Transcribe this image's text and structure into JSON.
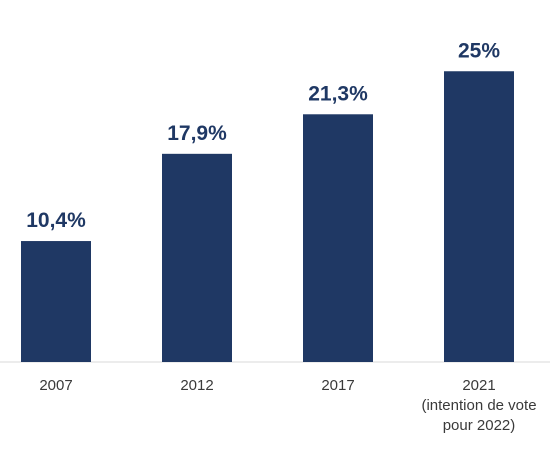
{
  "chart_data": {
    "type": "bar",
    "categories": [
      [
        "2007"
      ],
      [
        "2012"
      ],
      [
        "2017"
      ],
      [
        "2021",
        "(intention de vote",
        "pour 2022)"
      ]
    ],
    "values": [
      10.4,
      17.9,
      21.3,
      25
    ],
    "data_labels": [
      "10,4%",
      "17,9%",
      "21,3%",
      "25%"
    ],
    "bar_color": "#1f3864",
    "ylim": [
      0,
      25
    ],
    "grid": false,
    "legend": "none"
  }
}
